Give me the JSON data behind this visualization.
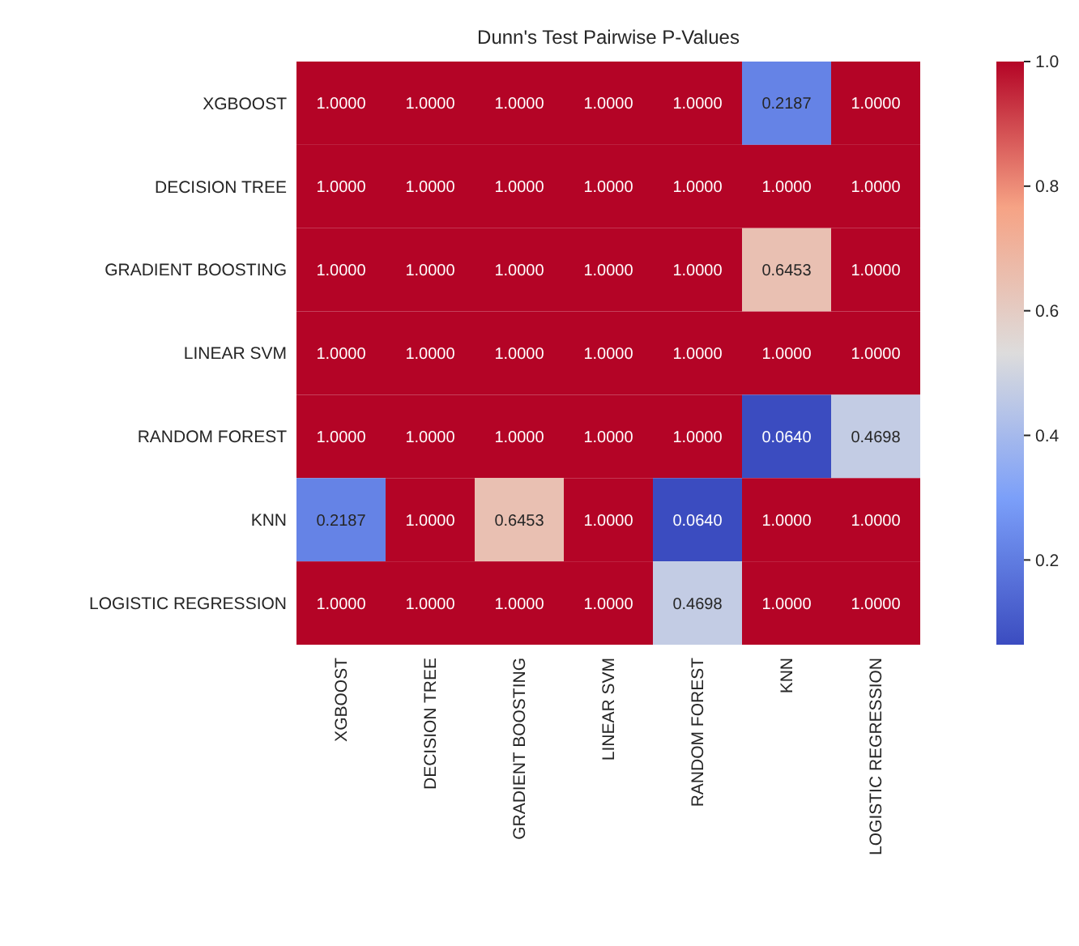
{
  "chart_data": {
    "type": "heatmap",
    "title": "Dunn's Test Pairwise P-Values",
    "categories": [
      "XGBOOST",
      "DECISION TREE",
      "GRADIENT BOOSTING",
      "LINEAR SVM",
      "RANDOM FOREST",
      "KNN",
      "LOGISTIC REGRESSION"
    ],
    "y_categories": [
      "XGBOOST",
      "DECISION TREE",
      "GRADIENT BOOSTING",
      "LINEAR SVM",
      "RANDOM FOREST",
      "KNN",
      "LOGISTIC REGRESSION"
    ],
    "cells": [
      [
        1,
        1,
        1,
        1,
        1,
        0.2187,
        1
      ],
      [
        1,
        1,
        1,
        1,
        1,
        1,
        1
      ],
      [
        1,
        1,
        1,
        1,
        1,
        0.6453,
        1
      ],
      [
        1,
        1,
        1,
        1,
        1,
        1,
        1
      ],
      [
        1,
        1,
        1,
        1,
        1,
        0.064,
        0.4698
      ],
      [
        0.2187,
        1,
        0.6453,
        1,
        0.064,
        1,
        1
      ],
      [
        1,
        1,
        1,
        1,
        0.4698,
        1,
        1
      ]
    ],
    "cell_labels": [
      [
        "1.0000",
        "1.0000",
        "1.0000",
        "1.0000",
        "1.0000",
        "0.2187",
        "1.0000"
      ],
      [
        "1.0000",
        "1.0000",
        "1.0000",
        "1.0000",
        "1.0000",
        "1.0000",
        "1.0000"
      ],
      [
        "1.0000",
        "1.0000",
        "1.0000",
        "1.0000",
        "1.0000",
        "0.6453",
        "1.0000"
      ],
      [
        "1.0000",
        "1.0000",
        "1.0000",
        "1.0000",
        "1.0000",
        "1.0000",
        "1.0000"
      ],
      [
        "1.0000",
        "1.0000",
        "1.0000",
        "1.0000",
        "1.0000",
        "0.0640",
        "0.4698"
      ],
      [
        "0.2187",
        "1.0000",
        "0.6453",
        "1.0000",
        "0.0640",
        "1.0000",
        "1.0000"
      ],
      [
        "1.0000",
        "1.0000",
        "1.0000",
        "1.0000",
        "0.4698",
        "1.0000",
        "1.0000"
      ]
    ],
    "clim": [
      0.064,
      1.0
    ],
    "cticks": [
      0.2,
      0.4,
      0.6,
      0.8,
      {
        "value": 1,
        "label": "1.0"
      }
    ]
  }
}
